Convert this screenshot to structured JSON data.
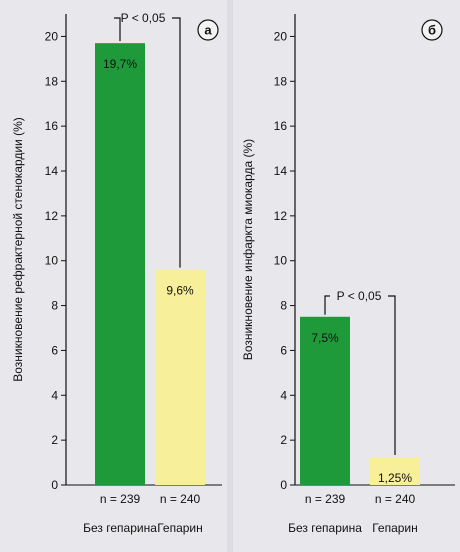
{
  "colors": {
    "background": "#dcdde2",
    "panel": "#e8e8ec",
    "bar_no_heparin": "#1f9a3a",
    "bar_heparin": "#f7ef9a",
    "axis": "#111111",
    "badge": "#f3f3f3"
  },
  "chart_data": [
    {
      "type": "bar",
      "panel_letter": "а",
      "ylabel": "Возникновение рефрактерной стенокардии (%)",
      "ylim": [
        0,
        21
      ],
      "yticks": [
        0,
        2,
        4,
        6,
        8,
        10,
        12,
        14,
        16,
        18,
        20
      ],
      "categories": [
        "Без гепарина",
        "Гепарин"
      ],
      "sample_sizes": [
        "n = 239",
        "n = 240"
      ],
      "values": [
        19.7,
        9.6
      ],
      "value_labels": [
        "19,7%",
        "9,6%"
      ],
      "significance": "P < 0,05"
    },
    {
      "type": "bar",
      "panel_letter": "б",
      "ylabel": "Возникновение инфаркта миокарда (%)",
      "ylim": [
        0,
        21
      ],
      "yticks": [
        0,
        2,
        4,
        6,
        8,
        10,
        12,
        14,
        16,
        18,
        20
      ],
      "categories": [
        "Без гепарина",
        "Гепарин"
      ],
      "sample_sizes": [
        "n = 239",
        "n = 240"
      ],
      "values": [
        7.5,
        1.25
      ],
      "value_labels": [
        "7,5%",
        "1,25%"
      ],
      "significance": "P < 0,05"
    }
  ]
}
